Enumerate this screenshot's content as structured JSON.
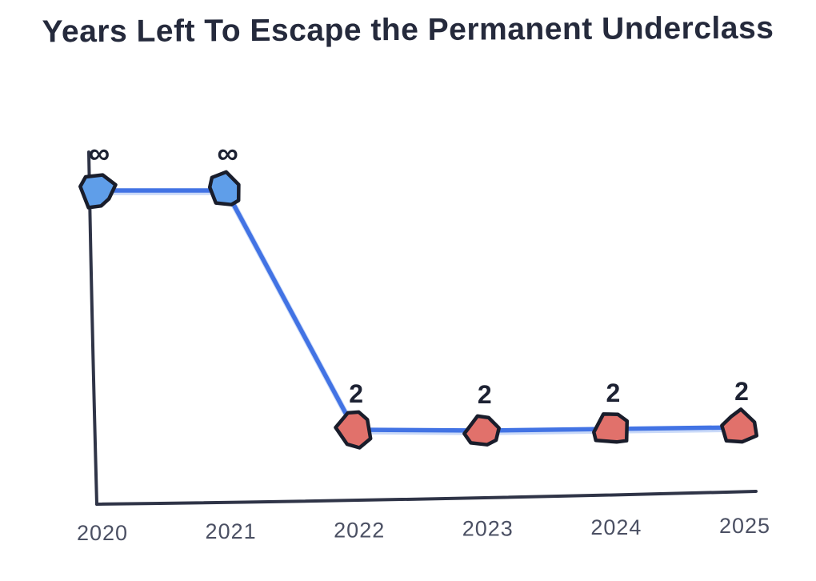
{
  "chart_data": {
    "type": "line",
    "title": "Years Left To Escape the Permanent Underclass",
    "xlabel": "",
    "ylabel": "",
    "x": [
      2020,
      2021,
      2022,
      2023,
      2024,
      2025
    ],
    "values": [
      "inf",
      "inf",
      2,
      2,
      2,
      2
    ],
    "point_labels": [
      "∞",
      "∞",
      "2",
      "2",
      "2",
      "2"
    ],
    "series_note": "single series; infinity plotted high, 2 plotted low",
    "grid": false,
    "legend": false,
    "style": "hand-drawn",
    "colors": {
      "title": "#252a3c",
      "axis": "#2f3447",
      "tick_label": "#4b5063",
      "value_label": "#1d2233",
      "line": "#4273e4",
      "line_halo": "#93b3f1",
      "point_fill_infinity": "#5f9ee9",
      "point_fill_two": "#e1716b",
      "point_stroke": "#191d2b"
    }
  }
}
